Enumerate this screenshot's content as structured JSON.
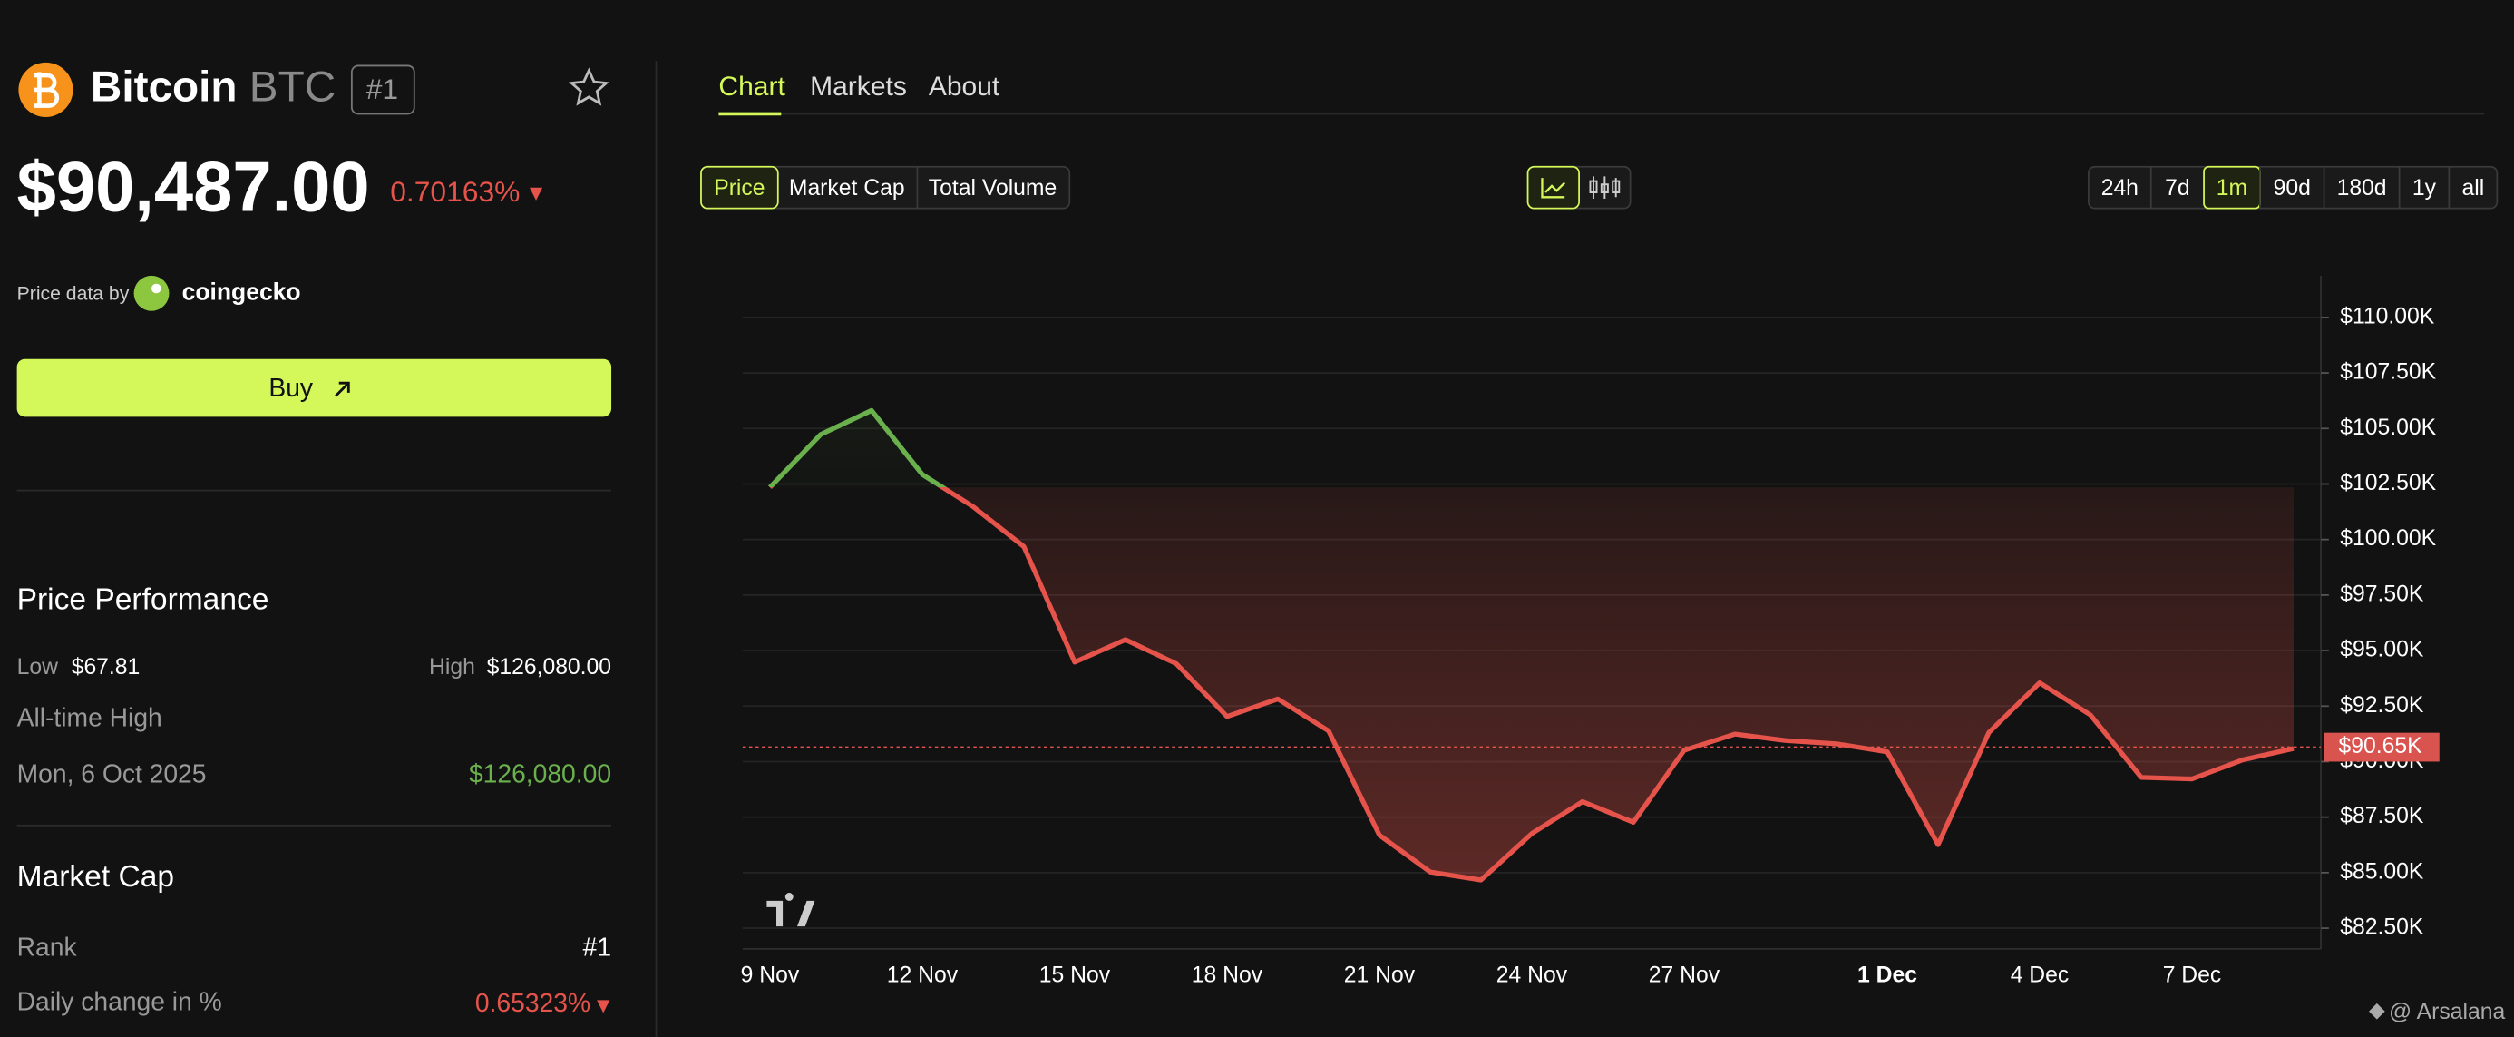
{
  "header": {
    "name": "Bitcoin",
    "symbol": "BTC",
    "rank_badge": "#1",
    "price": "$90,487.00",
    "change": "0.70163%",
    "source_prefix": "Price data by",
    "source_name": "coingecko",
    "buy_button": "Buy"
  },
  "performance": {
    "title": "Price Performance",
    "low_label": "Low",
    "low_value": "$67.81",
    "high_label": "High",
    "high_value": "$126,080.00",
    "ath_label": "All-time High",
    "ath_date": "Mon, 6 Oct 2025",
    "ath_value": "$126,080.00"
  },
  "market_cap": {
    "title": "Market Cap",
    "rank_label": "Rank",
    "rank_value": "#1",
    "daily_change_label": "Daily change in %",
    "daily_change_value": "0.65323%"
  },
  "tabs": [
    "Chart",
    "Markets",
    "About"
  ],
  "metric_buttons": [
    "Price",
    "Market Cap",
    "Total Volume"
  ],
  "range_buttons": [
    "24h",
    "7d",
    "1m",
    "90d",
    "180d",
    "1y",
    "all"
  ],
  "watermark": "@ Arsalana",
  "chart_data": {
    "type": "line",
    "categories": [
      "9 Nov",
      null,
      null,
      "12 Nov",
      null,
      null,
      "15 Nov",
      null,
      null,
      "18 Nov",
      null,
      null,
      "21 Nov",
      null,
      null,
      "24 Nov",
      null,
      null,
      "27 Nov",
      null,
      null,
      null,
      "1 Dec",
      null,
      null,
      "4 Dec",
      null,
      null,
      "7 Dec",
      null,
      null
    ],
    "series": [
      {
        "name": "Price",
        "color": "#e5534b",
        "values": [
          102.35,
          104.73,
          105.81,
          102.93,
          101.48,
          99.68,
          94.48,
          95.49,
          94.41,
          92.03,
          92.82,
          91.38,
          86.69,
          85.03,
          84.67,
          86.76,
          88.2,
          87.27,
          90.51,
          91.24,
          90.95,
          90.8,
          90.44,
          86.26,
          91.31,
          93.55,
          92.1,
          89.29,
          89.22,
          90.08,
          90.59
        ]
      }
    ],
    "up_color": "#6ab04c",
    "ylim": [
      81.57,
      111.88
    ],
    "yticks": [
      {
        "value": 82.5,
        "label": "$82.50K"
      },
      {
        "value": 85,
        "label": "$85.00K"
      },
      {
        "value": 87.5,
        "label": "$87.50K"
      },
      {
        "value": 90,
        "label": "$90.00K"
      },
      {
        "value": 92.5,
        "label": "$92.50K"
      },
      {
        "value": 95,
        "label": "$95.00K"
      },
      {
        "value": 97.5,
        "label": "$97.50K"
      },
      {
        "value": 100,
        "label": "$100.00K"
      },
      {
        "value": 102.5,
        "label": "$102.50K"
      },
      {
        "value": 105,
        "label": "$105.00K"
      },
      {
        "value": 107.5,
        "label": "$107.50K"
      },
      {
        "value": 110,
        "label": "$110.00K"
      }
    ],
    "last_price": {
      "value": 90.65,
      "label": "$90.65K"
    },
    "grid": true
  }
}
